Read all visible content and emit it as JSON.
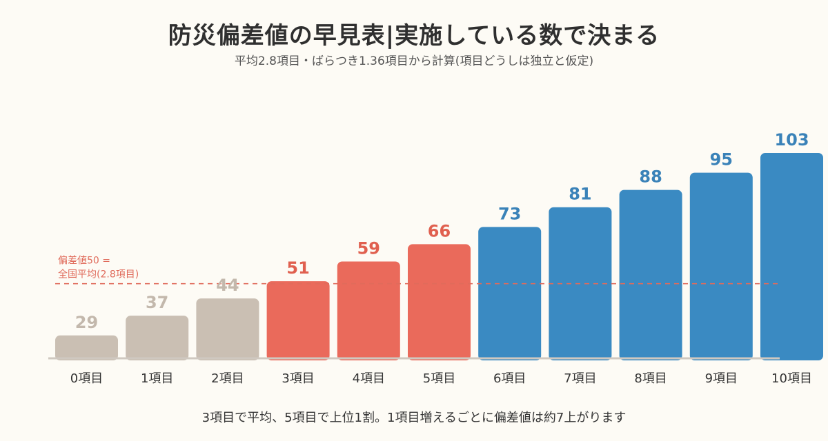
{
  "colors": {
    "low": "#cabfb3",
    "mid": "#ea6a5b",
    "high": "#3a8ac2",
    "reference": "#e06b5b",
    "baseline": "#cfc8c0",
    "low_text": "#c3b8ac",
    "mid_text": "#e0604f",
    "high_text": "#3a82b8"
  },
  "chart_data": {
    "type": "bar",
    "title": "防災偏差値の早見表|実施している数で決まる",
    "subtitle": "平均2.8項目・ばらつき1.36項目から計算(項目どうしは独立と仮定)",
    "categories": [
      "0項目",
      "1項目",
      "2項目",
      "3項目",
      "4項目",
      "5項目",
      "6項目",
      "7項目",
      "8項目",
      "9項目",
      "10項目"
    ],
    "x": [
      0,
      1,
      2,
      3,
      4,
      5,
      6,
      7,
      8,
      9,
      10
    ],
    "values": [
      29,
      37,
      44,
      51,
      59,
      66,
      73,
      81,
      88,
      95,
      103
    ],
    "groups": [
      "low",
      "low",
      "low",
      "mid",
      "mid",
      "mid",
      "high",
      "high",
      "high",
      "high",
      "high"
    ],
    "reference_line": {
      "x": 2.8,
      "y": 50,
      "label_line1": "偏差値50 =",
      "label_line2": "全国平均(2.8項目)"
    },
    "ylim": [
      20,
      105
    ],
    "grid": false,
    "footnote": "3項目で平均、5項目で上位1割。1項目増えるごとに偏差値は約7上がります"
  }
}
